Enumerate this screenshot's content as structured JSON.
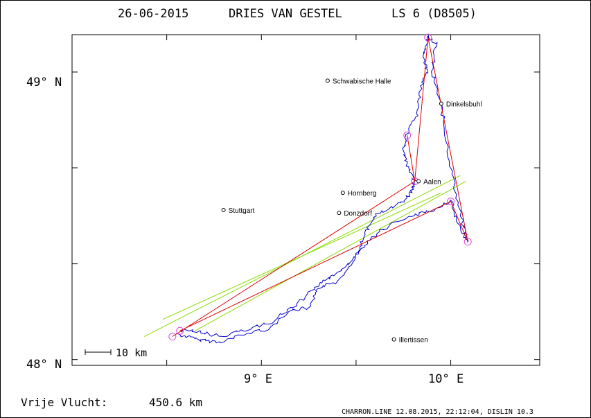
{
  "header": {
    "title_date": "26-06-2015",
    "title_pilot": "DRIES VAN GESTEL",
    "title_glider": "LS 6 (D8505)"
  },
  "map": {
    "lat_range": [
      47.98,
      49.13
    ],
    "lon_range": [
      8.0,
      10.47
    ],
    "grid_lats": [
      48.0,
      48.333,
      48.667,
      49.0
    ],
    "grid_lons": [
      8.5,
      9.0,
      9.5,
      10.0
    ],
    "y_axis_labels": [
      {
        "lat": 48.0,
        "text": "48° N"
      },
      {
        "lat": 49.0,
        "text": "49° N"
      }
    ],
    "x_axis_labels": [
      {
        "lon": 9.0,
        "text": "9° E"
      },
      {
        "lon": 10.0,
        "text": "10° E"
      }
    ],
    "scale_bar": {
      "label": "10 km",
      "km": 10
    },
    "colors": {
      "track": "#0000cc",
      "task": "#dd0000",
      "sectors": "#88dd00",
      "turnpoint": "#dd44dd",
      "frame": "#000000"
    },
    "cities": [
      {
        "name": "Schwabische Halle",
        "lat": 48.97,
        "lon": 9.35
      },
      {
        "name": "Dinkelsbuhl",
        "lat": 48.89,
        "lon": 9.95
      },
      {
        "name": "Aalen",
        "lat": 48.62,
        "lon": 9.83
      },
      {
        "name": "Hornberg",
        "lat": 48.58,
        "lon": 9.43
      },
      {
        "name": "Stuttgart",
        "lat": 48.52,
        "lon": 8.8
      },
      {
        "name": "Donzdorf",
        "lat": 48.51,
        "lon": 9.41
      },
      {
        "name": "Illertissen",
        "lat": 48.07,
        "lon": 9.7
      }
    ],
    "turnpoints": [
      {
        "lat": 48.08,
        "lon": 8.53
      },
      {
        "lat": 48.1,
        "lon": 8.57
      },
      {
        "lat": 48.62,
        "lon": 9.81
      },
      {
        "lat": 48.78,
        "lon": 9.77
      },
      {
        "lat": 49.12,
        "lon": 9.88
      },
      {
        "lat": 48.55,
        "lon": 10.0
      },
      {
        "lat": 48.41,
        "lon": 10.09
      }
    ],
    "task_route": [
      [
        48.08,
        8.53
      ],
      [
        48.62,
        9.81
      ],
      [
        48.78,
        9.77
      ],
      [
        48.62,
        9.81
      ],
      [
        49.12,
        9.88
      ],
      [
        48.41,
        10.09
      ],
      [
        48.55,
        10.0
      ],
      [
        48.1,
        8.57
      ]
    ],
    "sector_lines": [
      [
        [
          48.08,
          8.38
        ],
        [
          48.64,
          10.05
        ]
      ],
      [
        [
          48.1,
          8.65
        ],
        [
          48.62,
          10.08
        ]
      ],
      [
        [
          48.14,
          8.48
        ],
        [
          48.58,
          9.95
        ]
      ]
    ],
    "track": [
      [
        48.09,
        8.55
      ],
      [
        48.07,
        8.66
      ],
      [
        48.06,
        8.78
      ],
      [
        48.09,
        8.92
      ],
      [
        48.11,
        9.05
      ],
      [
        48.17,
        9.15
      ],
      [
        48.18,
        9.26
      ],
      [
        48.25,
        9.3
      ],
      [
        48.27,
        9.4
      ],
      [
        48.36,
        9.5
      ],
      [
        48.44,
        9.55
      ],
      [
        48.5,
        9.6
      ],
      [
        48.53,
        9.7
      ],
      [
        48.57,
        9.78
      ],
      [
        48.6,
        9.8
      ],
      [
        48.62,
        9.81
      ],
      [
        48.66,
        9.78
      ],
      [
        48.72,
        9.75
      ],
      [
        48.78,
        9.77
      ],
      [
        48.85,
        9.82
      ],
      [
        48.93,
        9.84
      ],
      [
        49.0,
        9.87
      ],
      [
        49.06,
        9.86
      ],
      [
        49.12,
        9.88
      ],
      [
        49.1,
        9.92
      ],
      [
        49.0,
        9.9
      ],
      [
        48.88,
        9.95
      ],
      [
        48.75,
        9.98
      ],
      [
        48.6,
        10.02
      ],
      [
        48.48,
        10.06
      ],
      [
        48.41,
        10.09
      ],
      [
        48.47,
        10.04
      ],
      [
        48.55,
        10.0
      ],
      [
        48.52,
        9.9
      ],
      [
        48.5,
        9.8
      ],
      [
        48.47,
        9.68
      ],
      [
        48.42,
        9.58
      ],
      [
        48.36,
        9.5
      ],
      [
        48.3,
        9.4
      ],
      [
        48.26,
        9.3
      ],
      [
        48.19,
        9.18
      ],
      [
        48.13,
        9.05
      ],
      [
        48.1,
        8.9
      ],
      [
        48.08,
        8.78
      ],
      [
        48.1,
        8.66
      ],
      [
        48.1,
        8.57
      ]
    ]
  },
  "footer": {
    "distance_label": "Vrije Vlucht:",
    "distance_value": "450.6 km",
    "credit": "CHARRON.LINE 12.08.2015, 22:12:04, DISLIN 10.3"
  }
}
